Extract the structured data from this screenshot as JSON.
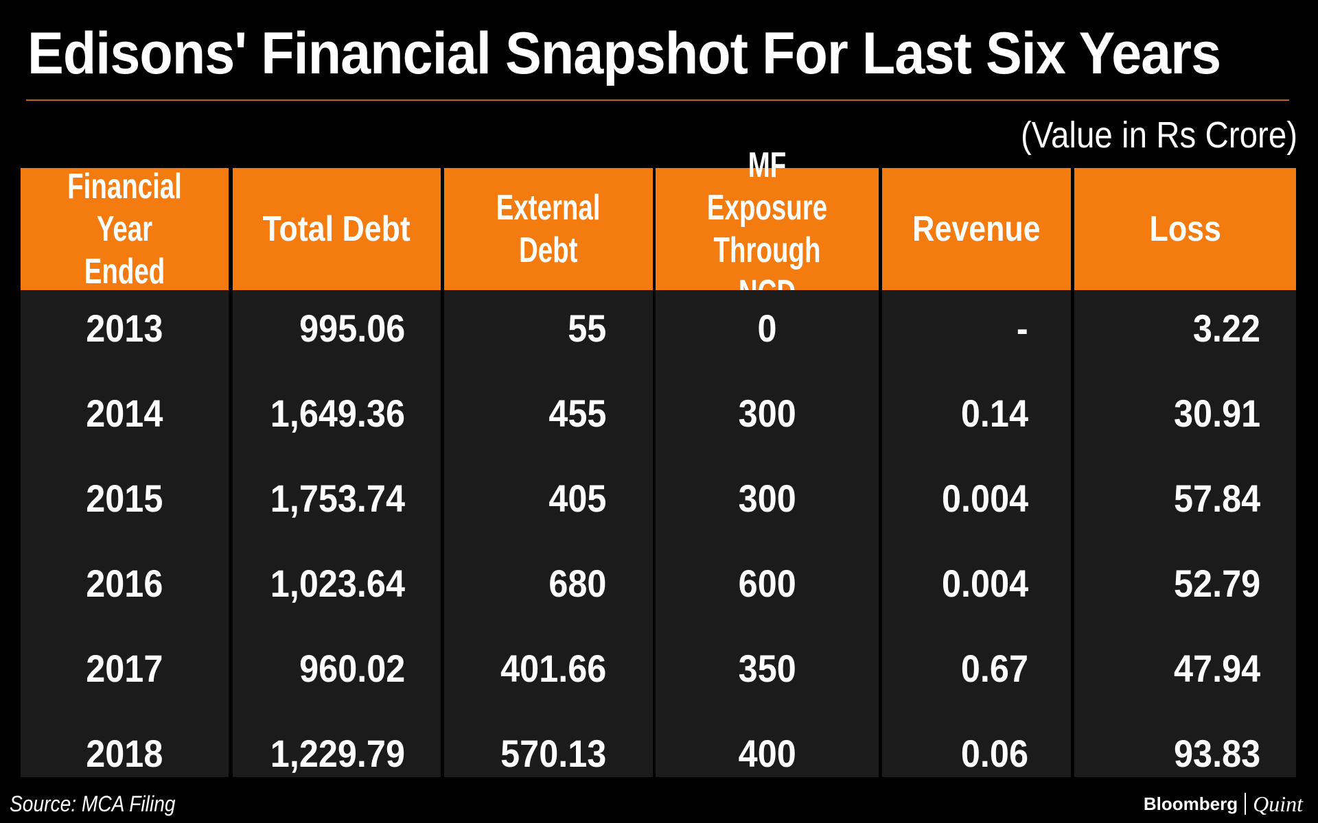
{
  "title": "Edisons' Financial Snapshot For Last Six Years",
  "units_note": "(Value in Rs Crore)",
  "source": "Source: MCA Filing",
  "logo": {
    "brand": "Bloomberg",
    "sub": "Quint"
  },
  "colors": {
    "header": "#f47b0f",
    "cell": "#1b1b1b",
    "background": "#000000",
    "text": "#ffffff",
    "rule": "#c0622a"
  },
  "chart_data": {
    "type": "table",
    "title": "Edisons' Financial Snapshot For Last Six Years",
    "subtitle": "(Value in Rs Crore)",
    "columns": [
      {
        "line1": "Financial Year",
        "line2": "Ended"
      },
      {
        "line1": "Total Debt",
        "line2": ""
      },
      {
        "line1": "External",
        "line2": "Debt"
      },
      {
        "line1": "MF Exposure",
        "line2": "Through NCD"
      },
      {
        "line1": "Revenue",
        "line2": ""
      },
      {
        "line1": "Loss",
        "line2": ""
      }
    ],
    "rows": [
      [
        "2013",
        "995.06",
        "55",
        "0",
        "-",
        "3.22"
      ],
      [
        "2014",
        "1,649.36",
        "455",
        "300",
        "0.14",
        "30.91"
      ],
      [
        "2015",
        "1,753.74",
        "405",
        "300",
        "0.004",
        "57.84"
      ],
      [
        "2016",
        "1,023.64",
        "680",
        "600",
        "0.004",
        "52.79"
      ],
      [
        "2017",
        "960.02",
        "401.66",
        "350",
        "0.67",
        "47.94"
      ],
      [
        "2018",
        "1,229.79",
        "570.13",
        "400",
        "0.06",
        "93.83"
      ]
    ]
  }
}
